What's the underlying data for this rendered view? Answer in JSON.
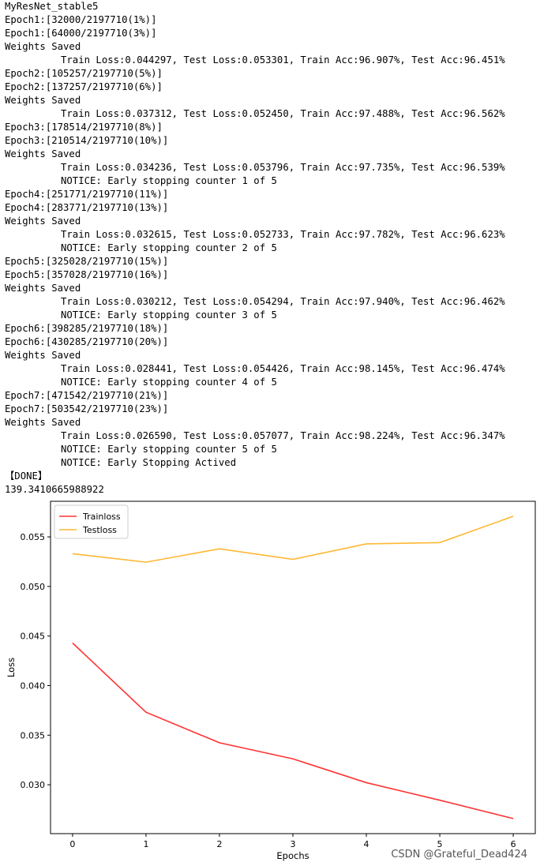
{
  "output": {
    "lines": [
      {
        "text": "MyResNet_stable5",
        "indent": false
      },
      {
        "text": "Epoch1:[32000/2197710(1%)]",
        "indent": false
      },
      {
        "text": "Epoch1:[64000/2197710(3%)]",
        "indent": false
      },
      {
        "text": "Weights Saved",
        "indent": false
      },
      {
        "text": "Train Loss:0.044297, Test Loss:0.053301, Train Acc:96.907%, Test Acc:96.451%",
        "indent": true
      },
      {
        "text": "Epoch2:[105257/2197710(5%)]",
        "indent": false
      },
      {
        "text": "Epoch2:[137257/2197710(6%)]",
        "indent": false
      },
      {
        "text": "Weights Saved",
        "indent": false
      },
      {
        "text": "Train Loss:0.037312, Test Loss:0.052450, Train Acc:97.488%, Test Acc:96.562%",
        "indent": true
      },
      {
        "text": "Epoch3:[178514/2197710(8%)]",
        "indent": false
      },
      {
        "text": "Epoch3:[210514/2197710(10%)]",
        "indent": false
      },
      {
        "text": "Weights Saved",
        "indent": false
      },
      {
        "text": "Train Loss:0.034236, Test Loss:0.053796, Train Acc:97.735%, Test Acc:96.539%",
        "indent": true
      },
      {
        "text": "NOTICE: Early stopping counter 1 of 5",
        "indent": true
      },
      {
        "text": "Epoch4:[251771/2197710(11%)]",
        "indent": false
      },
      {
        "text": "Epoch4:[283771/2197710(13%)]",
        "indent": false
      },
      {
        "text": "Weights Saved",
        "indent": false
      },
      {
        "text": "Train Loss:0.032615, Test Loss:0.052733, Train Acc:97.782%, Test Acc:96.623%",
        "indent": true
      },
      {
        "text": "NOTICE: Early stopping counter 2 of 5",
        "indent": true
      },
      {
        "text": "Epoch5:[325028/2197710(15%)]",
        "indent": false
      },
      {
        "text": "Epoch5:[357028/2197710(16%)]",
        "indent": false
      },
      {
        "text": "Weights Saved",
        "indent": false
      },
      {
        "text": "Train Loss:0.030212, Test Loss:0.054294, Train Acc:97.940%, Test Acc:96.462%",
        "indent": true
      },
      {
        "text": "NOTICE: Early stopping counter 3 of 5",
        "indent": true
      },
      {
        "text": "Epoch6:[398285/2197710(18%)]",
        "indent": false
      },
      {
        "text": "Epoch6:[430285/2197710(20%)]",
        "indent": false
      },
      {
        "text": "Weights Saved",
        "indent": false
      },
      {
        "text": "Train Loss:0.028441, Test Loss:0.054426, Train Acc:98.145%, Test Acc:96.474%",
        "indent": true
      },
      {
        "text": "NOTICE: Early stopping counter 4 of 5",
        "indent": true
      },
      {
        "text": "Epoch7:[471542/2197710(21%)]",
        "indent": false
      },
      {
        "text": "Epoch7:[503542/2197710(23%)]",
        "indent": false
      },
      {
        "text": "Weights Saved",
        "indent": false
      },
      {
        "text": "Train Loss:0.026590, Test Loss:0.057077, Train Acc:98.224%, Test Acc:96.347%",
        "indent": true
      },
      {
        "text": "NOTICE: Early stopping counter 5 of 5",
        "indent": true
      },
      {
        "text": "NOTICE: Early Stopping Actived",
        "indent": true
      },
      {
        "text": "【DONE】",
        "indent": false
      },
      {
        "text": "139.3410665988922",
        "indent": false
      }
    ]
  },
  "chart_data": {
    "type": "line",
    "x": [
      0,
      1,
      2,
      3,
      4,
      5,
      6
    ],
    "series": [
      {
        "name": "Trainloss",
        "color": "#ff3333",
        "values": [
          0.044297,
          0.037312,
          0.034236,
          0.032615,
          0.030212,
          0.028441,
          0.02659
        ]
      },
      {
        "name": "Testloss",
        "color": "#ffb733",
        "values": [
          0.053301,
          0.05245,
          0.053796,
          0.052733,
          0.054294,
          0.054426,
          0.057077
        ]
      }
    ],
    "xlabel": "Epochs",
    "ylabel": "Loss",
    "xticks": [
      0,
      1,
      2,
      3,
      4,
      5,
      6
    ],
    "yticks": [
      0.03,
      0.035,
      0.04,
      0.045,
      0.05,
      0.055
    ],
    "ytick_labels": [
      "0.030",
      "0.035",
      "0.040",
      "0.045",
      "0.050",
      "0.055"
    ],
    "xlim": [
      -0.3,
      6.3
    ],
    "ylim": [
      0.02507,
      0.05859
    ],
    "grid": false,
    "legend": "top-left"
  },
  "watermark": "CSDN @Grateful_Dead424"
}
